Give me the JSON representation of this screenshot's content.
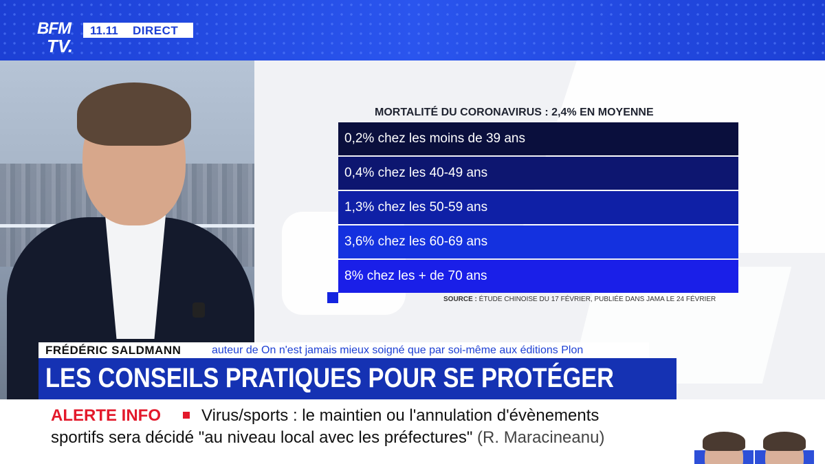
{
  "header": {
    "logo_line1": "BFM",
    "logo_line2": "TV.",
    "time": "11.11",
    "live": "DIRECT"
  },
  "panel": {
    "title": "MORTALITÉ DU CORONAVIRUS : 2,4% EN MOYENNE",
    "rows": [
      {
        "text": "0,2% chez les moins de 39 ans",
        "color": "#0a0f3d"
      },
      {
        "text": "0,4% chez les 40-49 ans",
        "color": "#0d1670"
      },
      {
        "text": "1,3% chez les 50-59 ans",
        "color": "#0f20a6"
      },
      {
        "text": "3,6% chez les 60-69 ans",
        "color": "#1431df"
      },
      {
        "text": "8% chez les + de 70 ans",
        "color": "#1a1fe8"
      }
    ],
    "source_label": "SOURCE :",
    "source_text": " ÉTUDE CHINOISE DU 17 FÉVRIER, PUBLIÉE DANS JAMA LE 24 FÉVRIER"
  },
  "lower_third": {
    "name": "FRÉDÉRIC SALDMANN",
    "role": "auteur de On n'est jamais mieux soigné que par soi-même aux éditions Plon",
    "headline": "LES CONSEILS PRATIQUES POUR SE PROTÉGER"
  },
  "alert": {
    "label": "ALERTE INFO",
    "line1": "Virus/sports : le maintien ou l'annulation d'évènements",
    "line2a": "sportifs sera décidé \"au niveau local avec les préfectures\"",
    "line2b": " (R. Maracineanu)"
  },
  "colors": {
    "brand_blue": "#1c3fd4",
    "headline_blue": "#1532b3",
    "alert_red": "#e3192b"
  }
}
